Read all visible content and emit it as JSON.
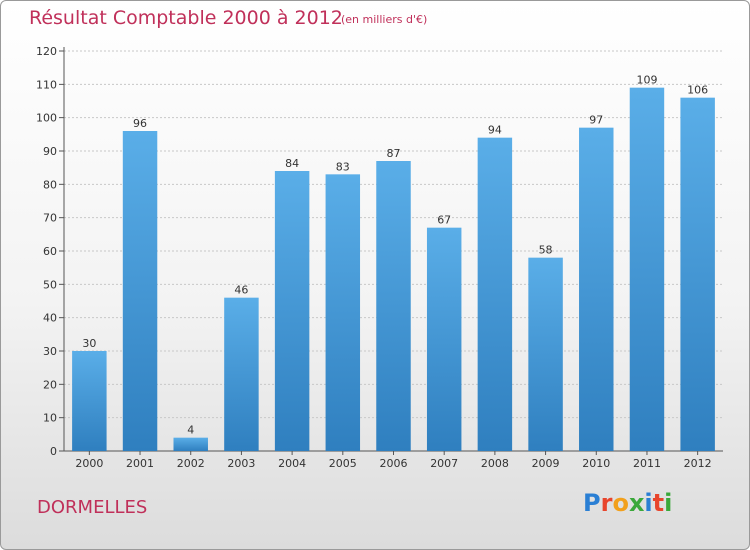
{
  "chart_data": {
    "type": "bar",
    "title": "Résultat Comptable 2000 à 2012",
    "subtitle": "(en milliers d'€)",
    "categories": [
      "2000",
      "2001",
      "2002",
      "2003",
      "2004",
      "2005",
      "2006",
      "2007",
      "2008",
      "2009",
      "2010",
      "2011",
      "2012"
    ],
    "values": [
      30,
      96,
      4,
      46,
      84,
      83,
      87,
      67,
      94,
      58,
      97,
      109,
      106
    ],
    "ylim": [
      0,
      120
    ],
    "yticks": [
      0,
      10,
      20,
      30,
      40,
      50,
      60,
      70,
      80,
      90,
      100,
      110,
      120
    ],
    "grid": true,
    "bar_color_top": "#5aaee8",
    "bar_color_bottom": "#2f7fbf"
  },
  "labels": {
    "commune": "DORMELLES",
    "logo": "Proxiti"
  },
  "colors": {
    "title": "#c0305a",
    "logo_letters": [
      "#2a7fd4",
      "#e8452c",
      "#f2a01c",
      "#3aa83a",
      "#2a7fd4",
      "#e8452c",
      "#3aa83a"
    ]
  }
}
